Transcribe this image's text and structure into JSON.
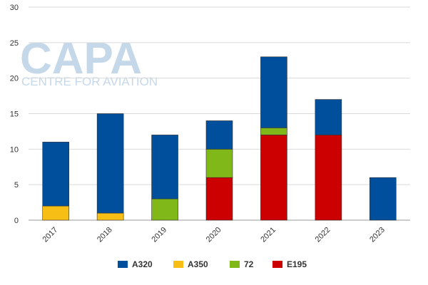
{
  "watermark": {
    "logo": "CAPA",
    "subtitle": "CENTRE FOR AVIATION"
  },
  "chart_data": {
    "type": "bar",
    "stacked": true,
    "title": "",
    "xlabel": "",
    "ylabel": "",
    "categories": [
      "2017",
      "2018",
      "2019",
      "2020",
      "2021",
      "2022",
      "2023"
    ],
    "ylim": [
      0,
      30
    ],
    "yticks": [
      0,
      5,
      10,
      15,
      20,
      25,
      30
    ],
    "grid": true,
    "legend_position": "bottom",
    "series": [
      {
        "name": "E195",
        "color": "#cc0000",
        "values": [
          0,
          0,
          0,
          6,
          12,
          12,
          0
        ]
      },
      {
        "name": "72",
        "color": "#80b819",
        "values": [
          0,
          0,
          3,
          4,
          1,
          0,
          0
        ]
      },
      {
        "name": "A350",
        "color": "#f7bf16",
        "values": [
          2,
          1,
          0,
          0,
          0,
          0,
          0
        ]
      },
      {
        "name": "A320",
        "color": "#004f9c",
        "values": [
          9,
          14,
          9,
          4,
          10,
          5,
          6
        ]
      }
    ],
    "legend_order": [
      "A320",
      "A350",
      "72",
      "E195"
    ]
  }
}
